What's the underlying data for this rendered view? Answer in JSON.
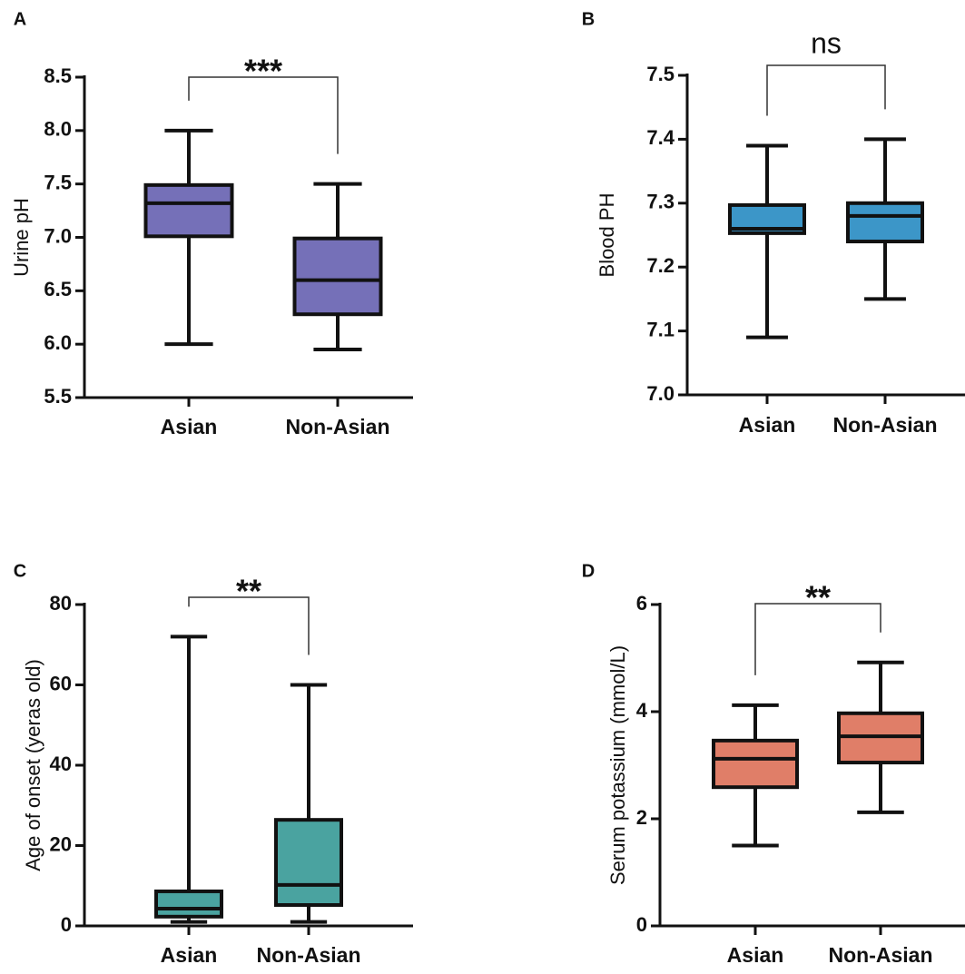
{
  "chart_data": [
    {
      "type": "box",
      "panel": "A",
      "ylabel": "Urine pH",
      "categories": [
        "Asian",
        "Non-Asian"
      ],
      "color": "#7570b8",
      "boxes": [
        {
          "min": 6.0,
          "q1": 7.01,
          "median": 7.32,
          "q3": 7.49,
          "max": 8.0
        },
        {
          "min": 5.95,
          "q1": 6.28,
          "median": 6.6,
          "q3": 6.99,
          "max": 7.5
        }
      ],
      "ylim": [
        5.5,
        8.5
      ],
      "yticks": [
        5.5,
        {
          "value": 6,
          "label": "6.0"
        },
        6.5,
        {
          "value": 7,
          "label": "7.0"
        },
        7.5,
        {
          "value": 8,
          "label": "8.0"
        },
        8.5
      ],
      "annotation": "***"
    },
    {
      "type": "box",
      "panel": "B",
      "ylabel": "Blood PH",
      "categories": [
        "Asian",
        "Non-Asian"
      ],
      "color": "#3c96c8",
      "boxes": [
        {
          "min": 7.09,
          "q1": 7.253,
          "median": 7.26,
          "q3": 7.297,
          "max": 7.39
        },
        {
          "min": 7.15,
          "q1": 7.24,
          "median": 7.28,
          "q3": 7.3,
          "max": 7.4
        }
      ],
      "ylim": [
        7.0,
        7.5
      ],
      "yticks": [
        {
          "value": 7,
          "label": "7.0"
        },
        7.1,
        7.2,
        7.3,
        7.4,
        7.5
      ],
      "annotation": "ns"
    },
    {
      "type": "box",
      "panel": "C",
      "ylabel": "Age of onset (yeras old)",
      "categories": [
        "Asian",
        "Non-Asian"
      ],
      "color": "#4aa3a0",
      "boxes": [
        {
          "min": 1,
          "q1": 2.3,
          "median": 4.3,
          "q3": 8.6,
          "max": 72
        },
        {
          "min": 1,
          "q1": 5.2,
          "median": 10.2,
          "q3": 26.4,
          "max": 60
        }
      ],
      "ylim": [
        0,
        80
      ],
      "yticks": [
        0,
        20,
        40,
        60,
        80
      ],
      "annotation": "**"
    },
    {
      "type": "box",
      "panel": "D",
      "ylabel": "Serum potassium (mmol/L)",
      "categories": [
        "Asian",
        "Non-Asian"
      ],
      "color": "#e07e68",
      "boxes": [
        {
          "min": 1.5,
          "q1": 2.59,
          "median": 3.12,
          "q3": 3.46,
          "max": 4.12
        },
        {
          "min": 2.12,
          "q1": 3.05,
          "median": 3.54,
          "q3": 3.97,
          "max": 4.92
        }
      ],
      "ylim": [
        0,
        6
      ],
      "yticks": [
        0,
        2,
        4,
        6
      ],
      "annotation": "**"
    }
  ]
}
